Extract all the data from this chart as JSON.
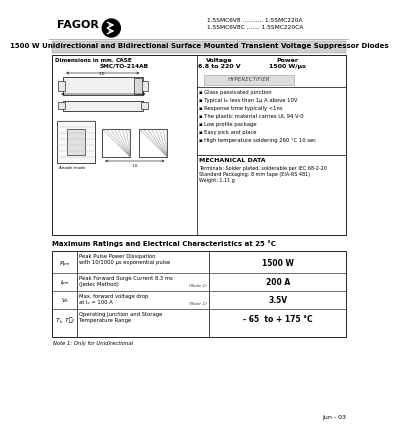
{
  "title_part1": "1.5SMC6V8 ........... 1.5SMC220A",
  "title_part2": "1.5SMC6V8C ....... 1.5SMC220CA",
  "main_title": "1500 W Unidirectional and Bidirectional Surface Mounted Transient Voltage Suppressor Diodes",
  "fagor_text": "FAGOR",
  "case_label": "CASE\nSMC/TO-214AB",
  "voltage_label": "Voltage\n6.8 to 220 V",
  "power_label": "Power\n1500 W/μs",
  "hyperect": "HYPERECTIFIER",
  "dim_label": "Dimensions in mm.",
  "features": [
    "Glass passivated junction",
    "Typical Iₘ less than 1μ A above 10V",
    "Response time typically <1ns",
    "The plastic material carries UL 94 V-0",
    "Low profile package",
    "Easy pick and place",
    "High temperature soldering 260 °C 10 sec"
  ],
  "mech_title": "MECHANICAL DATA",
  "mech_data": "Terminals: Solder plated, solderable per IEC 68-2-20\nStandard Packaging: 8 mm tape (EIA-RS 481)\nWeight: 1.11 g",
  "table_title": "Maximum Ratings and Electrical Characteristics at 25 °C",
  "rows": [
    {
      "symbol": "Pₚₘ",
      "description": "Peak Pulse Power Dissipation\nwith 10/1000 μs exponential pulse",
      "note": "",
      "value": "1500 W"
    },
    {
      "symbol": "Iₚₘ",
      "description": "Peak Forward Surge Current 8.3 ms\n(Jedec Method)",
      "note": "(Note 1)",
      "value": "200 A"
    },
    {
      "symbol": "Vₑ",
      "description": "Max. forward voltage drop\nat Iₑ = 100 A",
      "note": "(Note 1)",
      "value": "3.5V"
    },
    {
      "symbol": "Tⱼ, T₞ₗ",
      "description": "Operating Junction and Storage\nTemperature Range",
      "note": "",
      "value": "- 65  to + 175 °C"
    }
  ],
  "note": "Note 1: Only for Unidirectional",
  "date": "Jun - 03",
  "bg_color": "#ffffff",
  "gray_bar": "#cccccc",
  "table_header_gray": "#d0d0d0"
}
